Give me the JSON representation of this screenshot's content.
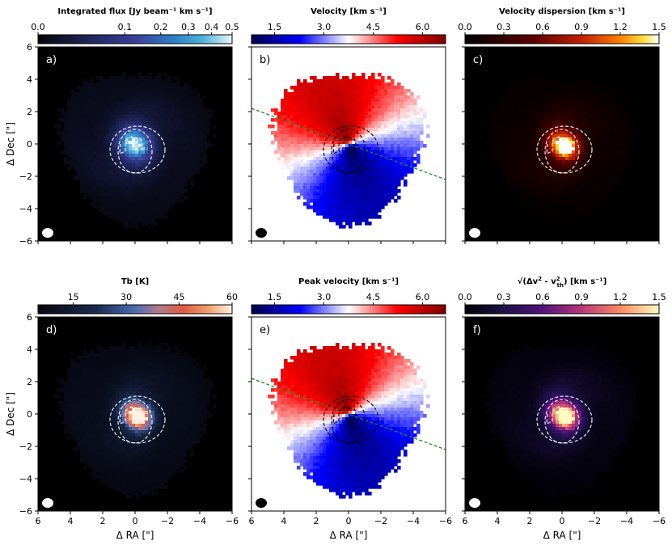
{
  "chart_data": [
    {
      "type": "heatmap",
      "panel": "a)",
      "colormap": "ice",
      "background": "dark",
      "title": "Integrated flux [Jy beam$^{-1}$ km s$^{-1}$]",
      "cbar_title": "Integrated flux [Jy beam⁻¹ km s⁻¹]",
      "cbar_scale": "sqrt",
      "cbar_ticks": [
        0.0,
        0.1,
        0.2,
        0.3,
        0.4,
        0.5
      ],
      "cbar_tick_labels": [
        "0.0",
        "0.1",
        "0.2",
        "0.3",
        "0.4",
        "0.5"
      ],
      "clim": [
        0.0,
        0.5
      ],
      "xlabel": "",
      "ylabel": "Δ Dec [\"]",
      "xlim": [
        6,
        -6
      ],
      "ylim": [
        -6,
        6
      ],
      "xticks": [
        6,
        4,
        2,
        0,
        -2,
        -4,
        -6
      ],
      "yticks": [
        -6,
        -4,
        -2,
        0,
        2,
        4,
        6
      ],
      "show_xticklabels": false,
      "show_yticklabels": true,
      "has_pa_line": false,
      "contour_color": "white",
      "beam_color": "white",
      "peak_component": "center"
    },
    {
      "type": "heatmap",
      "panel": "b)",
      "colormap": "seismic",
      "background": "light",
      "cbar_title": "Velocity [km s⁻¹]",
      "cbar_scale": "linear",
      "cbar_ticks": [
        1.5,
        3.0,
        4.5,
        6.0
      ],
      "cbar_tick_labels": [
        "1.5",
        "3.0",
        "4.5",
        "6.0"
      ],
      "clim": [
        0.8,
        6.7
      ],
      "xlabel": "",
      "ylabel": "",
      "xlim": [
        6,
        -6
      ],
      "ylim": [
        -6,
        6
      ],
      "xticks": [
        6,
        4,
        2,
        0,
        -2,
        -4,
        -6
      ],
      "yticks": [
        -6,
        -4,
        -2,
        0,
        2,
        4,
        6
      ],
      "show_xticklabels": false,
      "show_yticklabels": false,
      "has_pa_line": true,
      "contour_color": "black",
      "beam_color": "black",
      "velocity_field": true,
      "systemic_velocity": 3.7
    },
    {
      "type": "heatmap",
      "panel": "c)",
      "colormap": "gist_heat",
      "background": "dark",
      "cbar_title": "Velocity dispersion [km s⁻¹]",
      "cbar_scale": "linear",
      "cbar_ticks": [
        0.0,
        0.3,
        0.6,
        0.9,
        1.2,
        1.5
      ],
      "cbar_tick_labels": [
        "0.0",
        "0.3",
        "0.6",
        "0.9",
        "1.2",
        "1.5"
      ],
      "clim": [
        0.0,
        1.5
      ],
      "xlabel": "",
      "ylabel": "",
      "xlim": [
        6,
        -6
      ],
      "ylim": [
        -6,
        6
      ],
      "xticks": [
        6,
        4,
        2,
        0,
        -2,
        -4,
        -6
      ],
      "yticks": [
        -6,
        -4,
        -2,
        0,
        2,
        4,
        6
      ],
      "show_xticklabels": false,
      "show_yticklabels": false,
      "has_pa_line": false,
      "contour_color": "white",
      "beam_color": "white",
      "peak_component": "offset"
    },
    {
      "type": "heatmap",
      "panel": "d)",
      "colormap": "RdBu_dark",
      "background": "dark",
      "cbar_title": "Tb [K]",
      "cbar_scale": "linear",
      "cbar_ticks": [
        15,
        30,
        45,
        60
      ],
      "cbar_tick_labels": [
        "15",
        "30",
        "45",
        "60"
      ],
      "clim": [
        5,
        60
      ],
      "xlabel": "Δ RA [\"]",
      "ylabel": "Δ Dec [\"]",
      "xlim": [
        6,
        -6
      ],
      "ylim": [
        -6,
        6
      ],
      "xticks": [
        6,
        4,
        2,
        0,
        -2,
        -4,
        -6
      ],
      "yticks": [
        -6,
        -4,
        -2,
        0,
        2,
        4,
        6
      ],
      "show_xticklabels": true,
      "show_yticklabels": true,
      "has_pa_line": false,
      "contour_color": "white",
      "beam_color": "white",
      "peak_component": "offset"
    },
    {
      "type": "heatmap",
      "panel": "e)",
      "colormap": "seismic",
      "background": "light",
      "cbar_title": "Peak velocity [km s⁻¹]",
      "cbar_scale": "linear",
      "cbar_ticks": [
        1.5,
        3.0,
        4.5,
        6.0
      ],
      "cbar_tick_labels": [
        "1.5",
        "3.0",
        "4.5",
        "6.0"
      ],
      "clim": [
        0.8,
        6.7
      ],
      "xlabel": "Δ RA [\"]",
      "ylabel": "",
      "xlim": [
        6,
        -6
      ],
      "ylim": [
        -6,
        6
      ],
      "xticks": [
        6,
        4,
        2,
        0,
        -2,
        -4,
        -6
      ],
      "yticks": [
        -6,
        -4,
        -2,
        0,
        2,
        4,
        6
      ],
      "show_xticklabels": true,
      "show_yticklabels": false,
      "has_pa_line": true,
      "contour_color": "black",
      "beam_color": "black",
      "velocity_field": true,
      "systemic_velocity": 3.7
    },
    {
      "type": "heatmap",
      "panel": "f)",
      "colormap": "magma",
      "background": "dark",
      "cbar_title": "√(Δv² - v²th) [km s⁻¹]",
      "cbar_title_parts": [
        "√(Δv",
        "2",
        " - v",
        "2",
        "th",
        ") [km s⁻¹]"
      ],
      "cbar_scale": "linear",
      "cbar_ticks": [
        0.0,
        0.3,
        0.6,
        0.9,
        1.2,
        1.5
      ],
      "cbar_tick_labels": [
        "0.0",
        "0.3",
        "0.6",
        "0.9",
        "1.2",
        "1.5"
      ],
      "clim": [
        0.0,
        1.5
      ],
      "xlabel": "Δ RA [\"]",
      "ylabel": "",
      "xlim": [
        6,
        -6
      ],
      "ylim": [
        -6,
        6
      ],
      "xticks": [
        6,
        4,
        2,
        0,
        -2,
        -4,
        -6
      ],
      "yticks": [
        -6,
        -4,
        -2,
        0,
        2,
        4,
        6
      ],
      "show_xticklabels": true,
      "show_yticklabels": false,
      "has_pa_line": false,
      "contour_color": "white",
      "beam_color": "white",
      "peak_component": "offset"
    }
  ],
  "shared": {
    "pa_line": {
      "color": "#1f8a1f",
      "points_arcsec": [
        [
          6.0,
          2.2
        ],
        [
          -6.0,
          -2.2
        ]
      ],
      "style": "dashed"
    },
    "spiral_contours_arcsec": {
      "inner_ring": {
        "cx": 0.0,
        "cy": -0.45,
        "rx": 1.05,
        "ry": 1.35
      },
      "outer_ring": {
        "cx": -0.15,
        "cy": -0.35,
        "rx": 1.7,
        "ry": 1.45
      },
      "hook": [
        [
          0.9,
          0.0
        ],
        [
          0.95,
          -0.6
        ],
        [
          0.6,
          -0.45
        ],
        [
          0.6,
          0.2
        ],
        [
          0.2,
          0.45
        ],
        [
          -0.4,
          0.25
        ],
        [
          -0.5,
          -0.25
        ],
        [
          -0.2,
          -0.45
        ]
      ]
    },
    "beam_arcsec": {
      "x": 5.4,
      "y": -5.5,
      "major": 0.35,
      "minor": 0.3
    },
    "emission_extent_arcsec": 4.6,
    "tick_labels_x": [
      "6",
      "4",
      "2",
      "0",
      "−2",
      "−4",
      "−6"
    ],
    "tick_labels_y": [
      "6",
      "4",
      "2",
      "0",
      "−2",
      "−4",
      "−6"
    ]
  }
}
